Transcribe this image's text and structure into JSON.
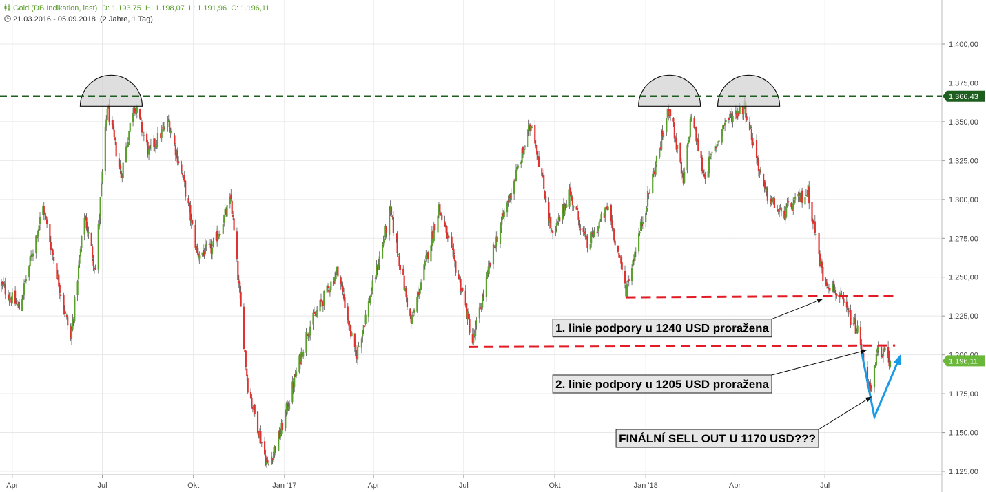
{
  "header": {
    "instrument": "Gold (DB Indikation, last)",
    "open": "O: 1.193,75",
    "high": "H: 1.198,07",
    "low": "L: 1.191,96",
    "close": "C: 1.196,11",
    "range": "21.03.2016 - 05.09.2018",
    "period": "(2 Jahre, 1 Tag)"
  },
  "chart_data": {
    "type": "candlestick",
    "x_range": [
      "2016-03-21",
      "2018-09-05"
    ],
    "y_range": [
      1120,
      1400
    ],
    "y_ticks": [
      {
        "v": 1400,
        "label": "1.400,00"
      },
      {
        "v": 1375,
        "label": "1.375,00"
      },
      {
        "v": 1350,
        "label": "1.350,00"
      },
      {
        "v": 1325,
        "label": "1.325,00"
      },
      {
        "v": 1300,
        "label": "1.300,00"
      },
      {
        "v": 1275,
        "label": "1.275,00"
      },
      {
        "v": 1250,
        "label": "1.250,00"
      },
      {
        "v": 1225,
        "label": "1.225,00"
      },
      {
        "v": 1200,
        "label": "1.200,00"
      },
      {
        "v": 1175,
        "label": "1.175,00"
      },
      {
        "v": 1150,
        "label": "1.150,00"
      },
      {
        "v": 1125,
        "label": "1.125,00"
      }
    ],
    "x_ticks": [
      {
        "t": "2016-04-01",
        "label": "Apr"
      },
      {
        "t": "2016-07-01",
        "label": "Jul"
      },
      {
        "t": "2016-10-01",
        "label": "Okt"
      },
      {
        "t": "2017-01-01",
        "label": "Jan '17"
      },
      {
        "t": "2017-04-01",
        "label": "Apr"
      },
      {
        "t": "2017-07-01",
        "label": "Jul"
      },
      {
        "t": "2017-10-01",
        "label": "Okt"
      },
      {
        "t": "2018-01-01",
        "label": "Jan '18"
      },
      {
        "t": "2018-04-01",
        "label": "Apr"
      },
      {
        "t": "2018-07-01",
        "label": "Jul"
      }
    ],
    "price_path": [
      [
        "2016-03-21",
        1245
      ],
      [
        "2016-04-08",
        1230
      ],
      [
        "2016-05-02",
        1295
      ],
      [
        "2016-05-30",
        1210
      ],
      [
        "2016-06-13",
        1290
      ],
      [
        "2016-06-24",
        1255
      ],
      [
        "2016-07-06",
        1360
      ],
      [
        "2016-07-20",
        1315
      ],
      [
        "2016-08-02",
        1362
      ],
      [
        "2016-08-17",
        1330
      ],
      [
        "2016-09-06",
        1350
      ],
      [
        "2016-09-20",
        1315
      ],
      [
        "2016-10-05",
        1265
      ],
      [
        "2016-10-20",
        1268
      ],
      [
        "2016-11-08",
        1300
      ],
      [
        "2016-11-25",
        1180
      ],
      [
        "2016-12-15",
        1128
      ],
      [
        "2016-12-28",
        1150
      ],
      [
        "2017-01-24",
        1215
      ],
      [
        "2017-02-24",
        1255
      ],
      [
        "2017-03-14",
        1198
      ],
      [
        "2017-04-18",
        1292
      ],
      [
        "2017-05-09",
        1220
      ],
      [
        "2017-06-06",
        1295
      ],
      [
        "2017-06-30",
        1240
      ],
      [
        "2017-07-10",
        1208
      ],
      [
        "2017-08-01",
        1270
      ],
      [
        "2017-09-08",
        1350
      ],
      [
        "2017-09-29",
        1275
      ],
      [
        "2017-10-16",
        1305
      ],
      [
        "2017-11-03",
        1270
      ],
      [
        "2017-11-24",
        1295
      ],
      [
        "2017-12-12",
        1242
      ],
      [
        "2018-01-25",
        1360
      ],
      [
        "2018-02-08",
        1310
      ],
      [
        "2018-02-16",
        1355
      ],
      [
        "2018-03-01",
        1315
      ],
      [
        "2018-03-22",
        1350
      ],
      [
        "2018-04-11",
        1360
      ],
      [
        "2018-05-01",
        1305
      ],
      [
        "2018-05-18",
        1290
      ],
      [
        "2018-06-14",
        1305
      ],
      [
        "2018-06-29",
        1250
      ],
      [
        "2018-07-13",
        1240
      ],
      [
        "2018-08-03",
        1215
      ],
      [
        "2018-08-16",
        1174
      ],
      [
        "2018-08-24",
        1205
      ],
      [
        "2018-09-05",
        1196.11
      ]
    ],
    "last_price": {
      "value": 1196.11,
      "label": "1.196,11",
      "color": "#6ab83a"
    },
    "resistance": {
      "value": 1366.43,
      "label": "1.366,43",
      "color": "#1e5e1e",
      "style": "dashed"
    },
    "support_lines": [
      {
        "from": [
          "2017-12-12",
          1237
        ],
        "to": [
          "2018-09-10",
          1238
        ],
        "color": "#e21b24",
        "style": "dashed"
      },
      {
        "from": [
          "2017-07-06",
          1205
        ],
        "to": [
          "2018-09-10",
          1206
        ],
        "color": "#e21b24",
        "style": "dashed"
      }
    ],
    "tops": [
      {
        "center": "2016-07-10",
        "value": 1366
      },
      {
        "center": "2018-01-25",
        "value": 1366
      },
      {
        "center": "2018-04-15",
        "value": 1366
      }
    ],
    "projection": {
      "points": [
        [
          "2018-08-07",
          1202
        ],
        [
          "2018-08-20",
          1160
        ],
        [
          "2018-09-15",
          1199
        ]
      ],
      "color": "#1a9be6"
    },
    "annotations": [
      {
        "text": "1. linie podpory u 1240 USD proražena",
        "box_at": [
          "2017-09-29",
          1223
        ],
        "arrow_to": [
          "2018-06-29",
          1236
        ]
      },
      {
        "text": "2. linie podpory u 1205 USD proražena",
        "box_at": [
          "2017-09-29",
          1187
        ],
        "arrow_to": [
          "2018-08-12",
          1203
        ]
      },
      {
        "text": "FINÁLNÍ SELL OUT U 1170 USD???",
        "box_at": [
          "2017-12-02",
          1152
        ],
        "arrow_to": [
          "2018-08-17",
          1173
        ]
      }
    ],
    "colors": {
      "up": "#5aa02c",
      "down": "#e0322f",
      "grid": "#e8e8e8"
    }
  }
}
